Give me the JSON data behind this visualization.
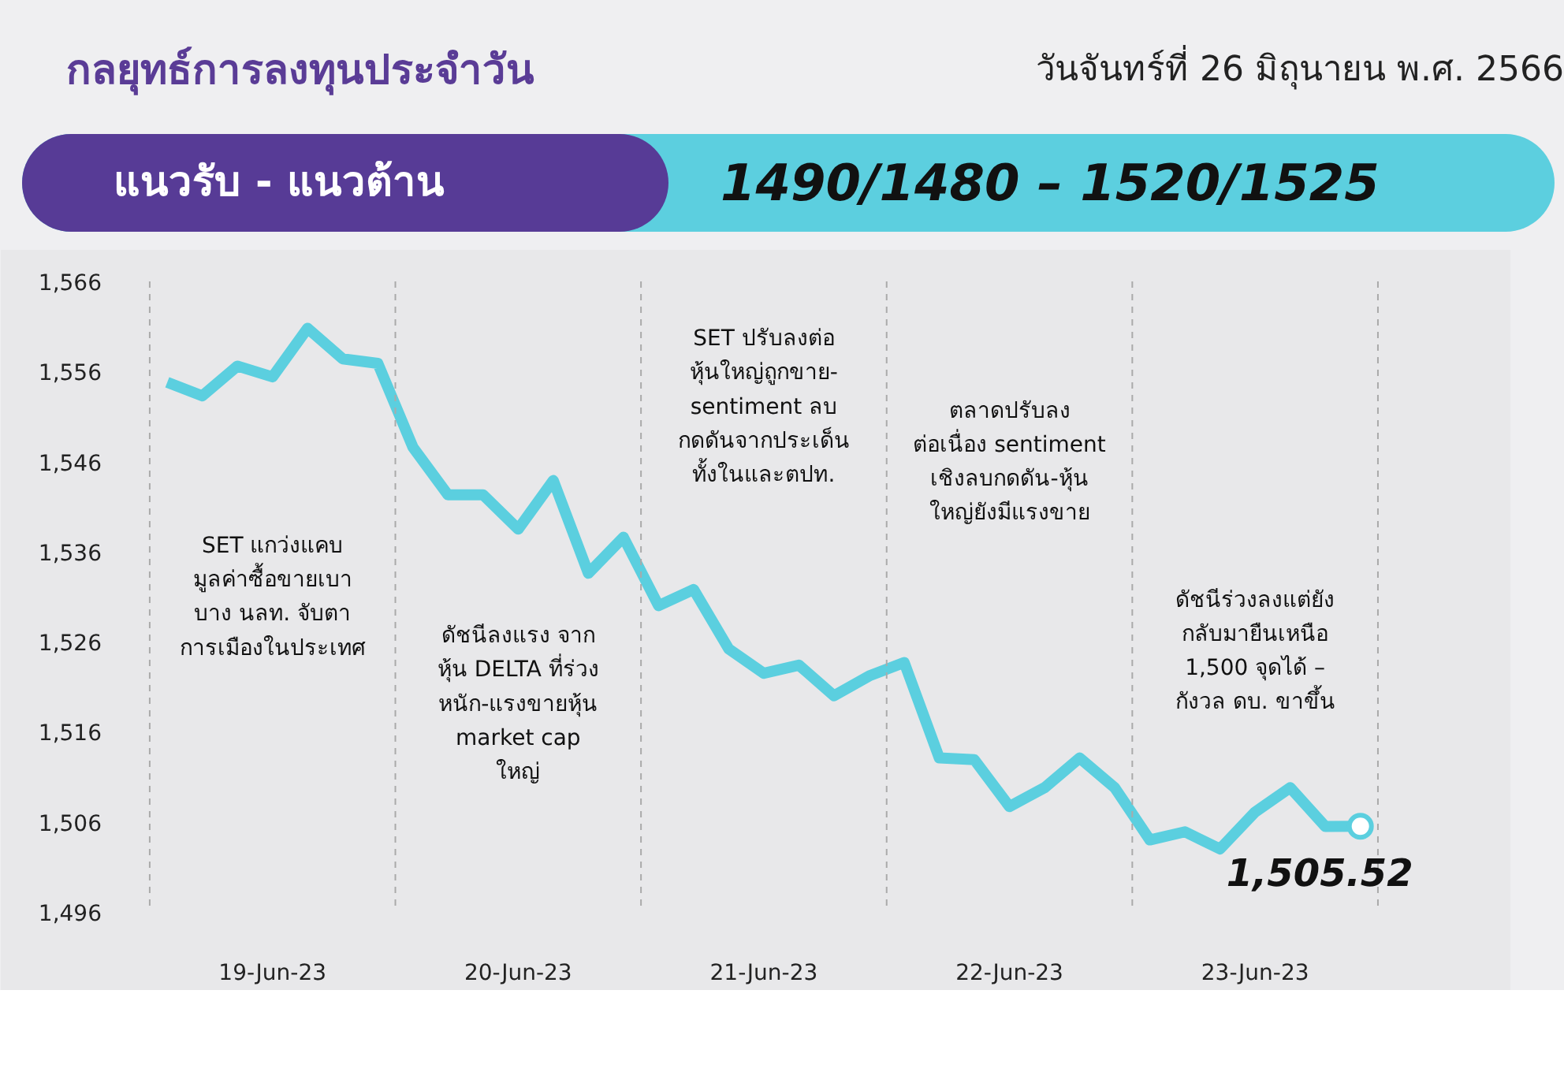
{
  "chart_data": {
    "type": "line",
    "title": "กลยุทธ์การลงทุนประจำวัน",
    "subtitle": "วันจันทร์ที่ 26 มิถุนายน พ.ศ. 2566",
    "categories": [
      null,
      null,
      null,
      "19-Jun-23",
      null,
      null,
      null,
      null,
      null,
      null,
      "20-Jun-23",
      null,
      null,
      null,
      null,
      null,
      null,
      "21-Jun-23",
      null,
      null,
      null,
      null,
      null,
      null,
      "22-Jun-23",
      null,
      null,
      null,
      null,
      null,
      null,
      "23-Jun-23",
      null,
      null,
      null
    ],
    "series": [
      {
        "color": "#5bcfdf",
        "values": [
          1554.8,
          1553.3,
          1556.6,
          1555.4,
          1560.8,
          1557.4,
          1556.9,
          1547.6,
          1542.3,
          1542.3,
          1538.5,
          1543.9,
          1533.6,
          1537.6,
          1530.0,
          1531.8,
          1525.2,
          1522.5,
          1523.4,
          1520.0,
          1522.2,
          1523.7,
          1513.1,
          1512.9,
          1507.7,
          1509.8,
          1513.1,
          1509.8,
          1504.0,
          1504.9,
          1503.0,
          1507.1,
          1509.8,
          1505.5,
          1505.52
        ]
      }
    ],
    "ylim": [
      1496,
      1566
    ],
    "yticks": [
      {
        "value": 1496,
        "label": "1,496"
      },
      {
        "value": 1506,
        "label": "1,506"
      },
      {
        "value": 1516,
        "label": "1,516"
      },
      {
        "value": 1526,
        "label": "1,526"
      },
      {
        "value": 1536,
        "label": "1,536"
      },
      {
        "value": 1546,
        "label": "1,546"
      },
      {
        "value": 1556,
        "label": "1,556"
      },
      {
        "value": 1566,
        "label": "1,566"
      }
    ],
    "annotations": [
      "แนวรับ - แนวต้าน",
      "1490/1480 – 1520/1525",
      "SET แกว่งแคบ\nมูลค่าซื้อขายเบา\nบาง นลท. จับตา\nการเมืองในประเทศ",
      "ดัชนีลงแรง จาก\nหุ้น DELTA ที่ร่วง\nหนัก-แรงขายหุ้น\nmarket cap\nใหญ่",
      "SET ปรับลงต่อ\nหุ้นใหญ่ถูกขาย-\nsentiment ลบ\nกดดันจากประเด็น\nทั้งในและตปท.",
      "ตลาดปรับลง\nต่อเนื่อง sentiment\nเชิงลบกดดัน-หุ้น\nใหญ่ยังมีแรงขาย",
      "ดัชนีร่วงลงแต่ยัง\nกลับมายืนเหนือ\n1,500 จุดได้ –\nกังวล ดบ. ขาขึ้น",
      {
        "text": "1,505.52",
        "y": 1505.52
      }
    ],
    "line_style": "solid",
    "marker": "none"
  }
}
